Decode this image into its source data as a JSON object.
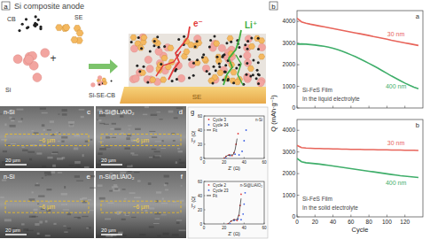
{
  "panel_a": {
    "label": "a",
    "title": "Si composite anode",
    "components": [
      "CB",
      "SE",
      "Si"
    ],
    "plus": "+",
    "mixture": "Si-SE-CB",
    "electron": "e⁻",
    "ion": "Li⁺",
    "electrolyte": "SE"
  },
  "sem_panels": [
    {
      "label": "c",
      "sample": "n-Si",
      "thickness": "~6 µm",
      "scale_bar": "20 µm"
    },
    {
      "label": "d",
      "sample": "n-Si@LiAlO₂",
      "thickness": "~6 µm",
      "scale_bar": "20 µm"
    },
    {
      "label": "e",
      "sample": "n-Si",
      "thickness": "~6 µm",
      "scale_bar": "20 µm"
    },
    {
      "label": "f",
      "sample": "n-Si@LiAlO₂",
      "thickness": "~6 µm",
      "scale_bar": "20 µm"
    }
  ],
  "panel_b": {
    "label": "b",
    "y_label": "Q (mAh·g⁻¹)"
  },
  "panel_g": {
    "label": "g"
  },
  "chart_data": [
    {
      "type": "line",
      "annotations": [
        "a",
        "Si-FeS Film",
        "In the liquid electrolyte"
      ],
      "x": [
        0,
        5,
        10,
        15,
        20,
        25,
        30,
        35,
        40,
        45,
        50,
        55,
        60,
        65,
        70,
        75,
        80,
        85,
        90,
        95,
        100,
        105,
        110,
        115,
        120,
        125,
        130,
        135
      ],
      "series": [
        {
          "name": "30 nm",
          "color": "#e8645a",
          "values": [
            4150,
            3980,
            3920,
            3870,
            3830,
            3790,
            3750,
            3710,
            3670,
            3630,
            3590,
            3550,
            3510,
            3470,
            3430,
            3390,
            3350,
            3300,
            3260,
            3220,
            3180,
            3130,
            3090,
            3050,
            3010,
            2970,
            2930,
            2890
          ]
        },
        {
          "name": "400 nm",
          "color": "#3fae6a",
          "values": [
            2950,
            2960,
            2950,
            2930,
            2910,
            2880,
            2850,
            2810,
            2760,
            2700,
            2630,
            2550,
            2460,
            2370,
            2270,
            2170,
            2060,
            1950,
            1840,
            1720,
            1600,
            1480,
            1370,
            1260,
            1150,
            1050,
            960,
            890
          ]
        }
      ],
      "xlim": [
        0,
        140
      ],
      "ylim": [
        0,
        4500
      ],
      "xticks": [
        0,
        20,
        40,
        60,
        80,
        100,
        120
      ],
      "yticks": [
        0,
        1000,
        2000,
        3000,
        4000
      ],
      "tick_labels": "y",
      "grid": false,
      "legend": "inline"
    },
    {
      "type": "line",
      "annotations": [
        "b",
        "Si-FeS Film",
        "In the solid electrolyte"
      ],
      "x_label": "Cycle",
      "x": [
        0,
        5,
        10,
        15,
        20,
        25,
        30,
        35,
        40,
        45,
        50,
        55,
        60,
        65,
        70,
        75,
        80,
        85,
        90,
        95,
        100,
        105,
        110,
        115,
        120,
        125,
        130,
        135
      ],
      "series": [
        {
          "name": "30 nm",
          "color": "#e8645a",
          "values": [
            3300,
            3200,
            3180,
            3170,
            3160,
            3160,
            3150,
            3150,
            3140,
            3140,
            3130,
            3130,
            3120,
            3120,
            3120,
            3110,
            3110,
            3110,
            3100,
            3100,
            3100,
            3090,
            3090,
            3090,
            3080,
            3080,
            3080,
            3070
          ]
        },
        {
          "name": "400 nm",
          "color": "#3fae6a",
          "values": [
            2700,
            2550,
            2500,
            2480,
            2460,
            2440,
            2410,
            2380,
            2350,
            2320,
            2290,
            2260,
            2230,
            2200,
            2170,
            2140,
            2110,
            2080,
            2050,
            2020,
            1990,
            1960,
            1930,
            1900,
            1880,
            1860,
            1840,
            1820
          ]
        }
      ],
      "xlim": [
        0,
        140
      ],
      "ylim": [
        0,
        4500
      ],
      "xticks": [
        0,
        20,
        40,
        60,
        80,
        100,
        120
      ],
      "yticks": [
        0,
        1000,
        2000,
        3000,
        4000
      ],
      "grid": false,
      "legend": "inline"
    },
    {
      "type": "scatter",
      "annotations": [
        "n-Si"
      ],
      "x_label": "Z' (Ω)",
      "y_label": "-Z'' (Ω)",
      "series": [
        {
          "name": "Cycle 3",
          "color": "#e23b3b",
          "marker": "circle",
          "x": [
            20,
            22,
            25,
            28,
            30,
            32,
            34
          ],
          "values": [
            0,
            3,
            5,
            4,
            8,
            20,
            35
          ]
        },
        {
          "name": "Cycle 34",
          "color": "#3b5fe2",
          "marker": "circle",
          "x": [
            22,
            26,
            31,
            35,
            38,
            40,
            42
          ],
          "values": [
            0,
            4,
            6,
            5,
            10,
            25,
            40
          ]
        },
        {
          "name": "Fit",
          "color": "#222222",
          "type": "line",
          "line_style": "solid",
          "x": [
            20,
            23,
            26,
            29,
            31,
            33
          ],
          "values": [
            0,
            4,
            5,
            5,
            12,
            28
          ]
        }
      ],
      "xlim": [
        0,
        60
      ],
      "ylim": [
        0,
        60
      ],
      "xticks": [
        0,
        20,
        40,
        60
      ],
      "yticks": [
        0,
        20,
        40,
        60
      ],
      "grid": false,
      "legend": "upper left"
    },
    {
      "type": "scatter",
      "annotations": [
        "n-Si@LiAlO₂"
      ],
      "x_label": "Z' (Ω)",
      "y_label": "-Z'' (Ω)",
      "series": [
        {
          "name": "Cycle 2",
          "color": "#e23b3b",
          "marker": "circle",
          "x": [
            24,
            27,
            30,
            33,
            35,
            36,
            37
          ],
          "values": [
            0,
            4,
            6,
            5,
            12,
            26,
            42
          ]
        },
        {
          "name": "Cycle 23",
          "color": "#3b5fe2",
          "marker": "circle",
          "x": [
            26,
            30,
            34,
            37,
            39,
            40,
            41
          ],
          "values": [
            0,
            5,
            7,
            6,
            14,
            28,
            44
          ]
        },
        {
          "name": "Fit",
          "color": "#222222",
          "type": "line",
          "line_style": "solid",
          "x": [
            24,
            27,
            30,
            33,
            35,
            37
          ],
          "values": [
            0,
            4,
            6,
            6,
            14,
            36
          ]
        }
      ],
      "xlim": [
        0,
        60
      ],
      "ylim": [
        0,
        60
      ],
      "xticks": [
        0,
        20,
        40,
        60
      ],
      "yticks": [
        0,
        20,
        40,
        60
      ],
      "grid": false,
      "legend": "upper left"
    }
  ]
}
